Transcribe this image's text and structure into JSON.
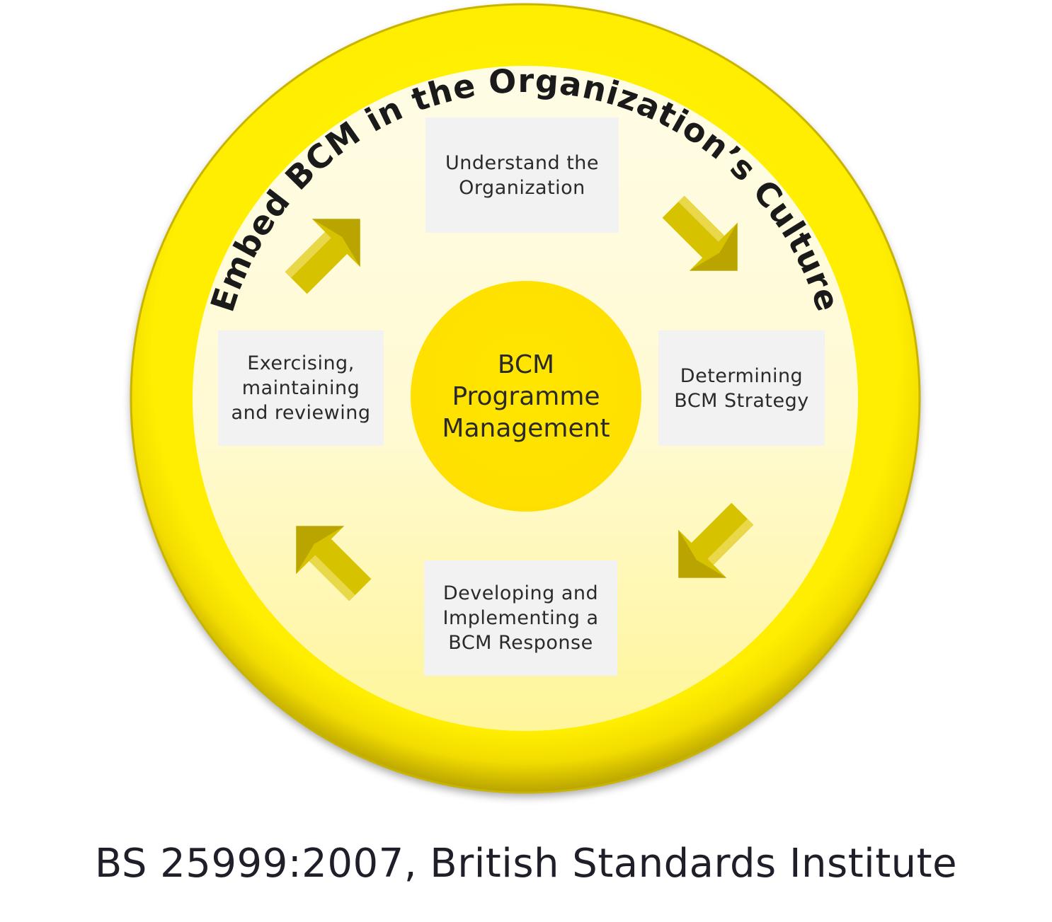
{
  "ring_title": "Embed BCM in the Organization’s Culture",
  "center": {
    "lines": [
      "BCM",
      "Programme",
      "Management"
    ]
  },
  "stages": {
    "top": {
      "lines": [
        "Understand the",
        "Organization"
      ]
    },
    "right": {
      "lines": [
        "Determining",
        "BCM Strategy"
      ]
    },
    "bottom": {
      "lines": [
        "Developing and",
        "Implementing a",
        "BCM Response"
      ]
    },
    "left": {
      "lines": [
        "Exercising,",
        "maintaining",
        "and reviewing"
      ]
    }
  },
  "source": "BS 25999:2007, British Standards Institute",
  "colors": {
    "ring": "#ffee00",
    "ring_edge": "#c9b400",
    "inner_fill": "#fffbd9",
    "center_fill": "#ffe200",
    "arrow": "#d8c200",
    "box": "#f2f2f2",
    "text": "#2a2a2a"
  }
}
